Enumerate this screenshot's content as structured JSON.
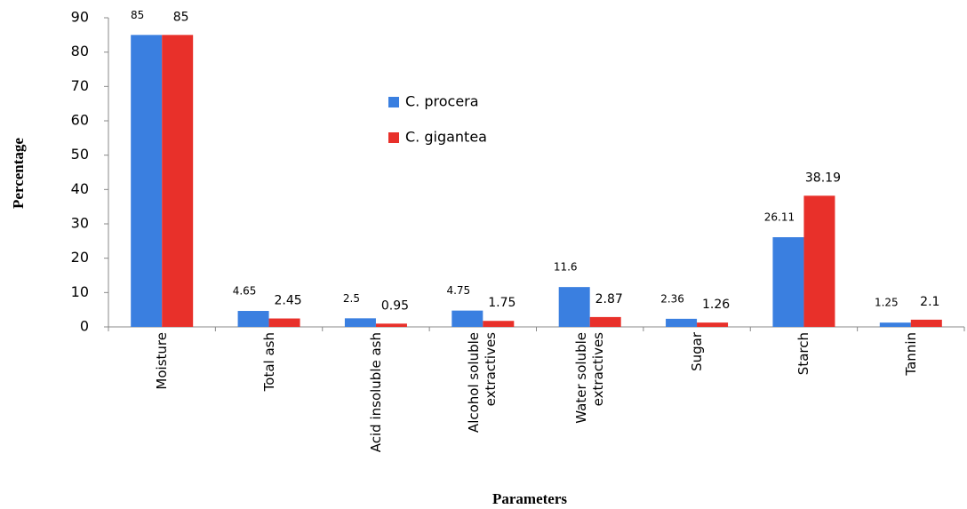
{
  "chart_data": {
    "type": "bar",
    "x_label": "Parameters",
    "y_label": "Percentage",
    "categories": [
      "Moisture",
      "Total ash",
      "Acid insoluble ash",
      "Alcohol soluble extractives",
      "Water soluble extractives",
      "Sugar",
      "Starch",
      "Tannin"
    ],
    "series": [
      {
        "name": "C. procera",
        "color": "#3a7fe0",
        "values": [
          85,
          4.65,
          2.5,
          4.75,
          11.6,
          2.36,
          26.11,
          1.25
        ]
      },
      {
        "name": "C. gigantea",
        "color": "#e8302a",
        "values": [
          85,
          2.45,
          0.95,
          1.75,
          2.87,
          1.26,
          38.19,
          2.1
        ]
      }
    ],
    "ylim": [
      0,
      90
    ],
    "yticks": [
      0,
      10,
      20,
      30,
      40,
      50,
      60,
      70,
      80,
      90
    ],
    "grid": false,
    "legend": "center"
  }
}
